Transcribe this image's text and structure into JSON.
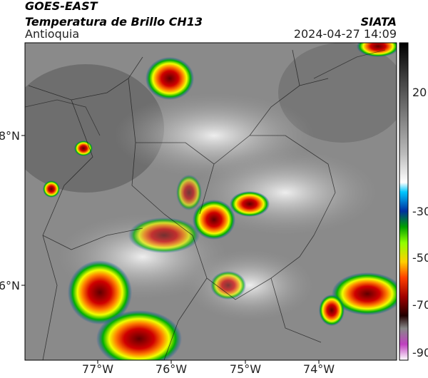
{
  "header": {
    "source": "GOES-EAST",
    "product": "Temperatura de Brillo CH13",
    "region": "Antioquia",
    "agency": "SIATA",
    "timestamp": "2024-04-27 14:09"
  },
  "longitude_labels": [
    "77°W",
    "76°W",
    "75°W",
    "74°W"
  ],
  "latitude_labels": [
    "8°N",
    "6°N"
  ],
  "colorbar_labels": [
    "20",
    "-30",
    "-50",
    "-70",
    "-90"
  ]
}
